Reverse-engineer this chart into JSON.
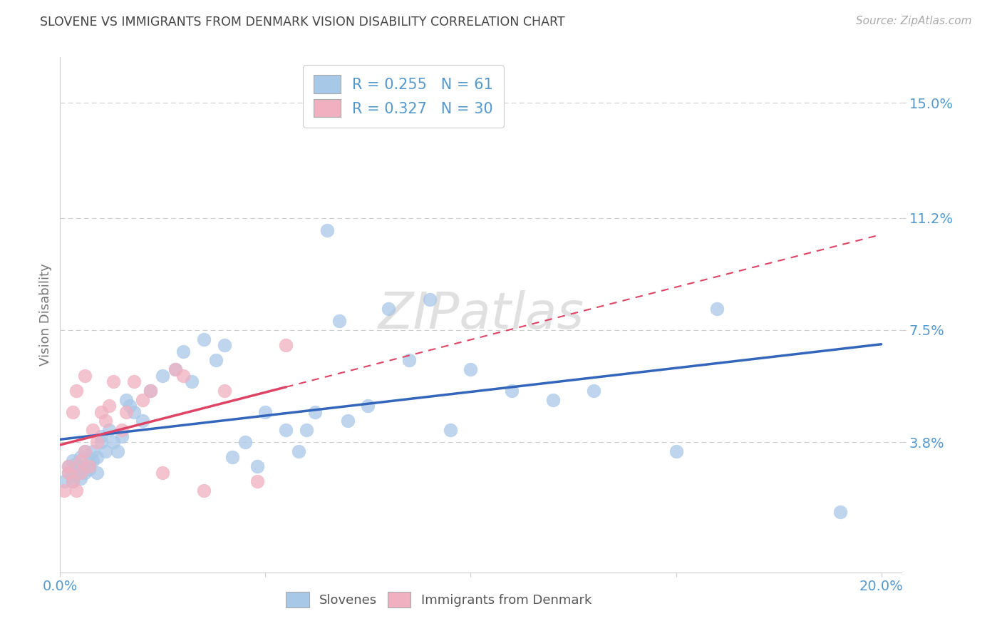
{
  "title": "SLOVENE VS IMMIGRANTS FROM DENMARK VISION DISABILITY CORRELATION CHART",
  "source": "Source: ZipAtlas.com",
  "ylabel": "Vision Disability",
  "xlim": [
    0.0,
    0.205
  ],
  "ylim": [
    -0.005,
    0.165
  ],
  "yticks": [
    0.038,
    0.075,
    0.112,
    0.15
  ],
  "ytick_labels": [
    "3.8%",
    "7.5%",
    "11.2%",
    "15.0%"
  ],
  "xticks": [
    0.0,
    0.05,
    0.1,
    0.15,
    0.2
  ],
  "R_blue": 0.255,
  "N_blue": 61,
  "R_pink": 0.327,
  "N_pink": 30,
  "blue_color": "#a8c8e8",
  "pink_color": "#f0b0c0",
  "blue_line_color": "#3366bb",
  "pink_line_color": "#dd4466",
  "tick_label_color": "#5599cc",
  "grid_color": "#cccccc",
  "background_color": "#ffffff",
  "blue_scatter_x": [
    0.001,
    0.002,
    0.002,
    0.003,
    0.003,
    0.003,
    0.004,
    0.004,
    0.005,
    0.005,
    0.005,
    0.006,
    0.006,
    0.007,
    0.007,
    0.008,
    0.008,
    0.009,
    0.009,
    0.01,
    0.01,
    0.011,
    0.012,
    0.013,
    0.014,
    0.015,
    0.016,
    0.017,
    0.018,
    0.02,
    0.022,
    0.025,
    0.028,
    0.03,
    0.032,
    0.035,
    0.038,
    0.04,
    0.042,
    0.045,
    0.048,
    0.05,
    0.055,
    0.058,
    0.06,
    0.062,
    0.065,
    0.068,
    0.07,
    0.075,
    0.08,
    0.085,
    0.09,
    0.095,
    0.1,
    0.11,
    0.12,
    0.13,
    0.15,
    0.16,
    0.19
  ],
  "blue_scatter_y": [
    0.025,
    0.028,
    0.03,
    0.027,
    0.032,
    0.025,
    0.028,
    0.031,
    0.03,
    0.026,
    0.033,
    0.028,
    0.035,
    0.029,
    0.031,
    0.032,
    0.035,
    0.028,
    0.033,
    0.038,
    0.04,
    0.035,
    0.042,
    0.038,
    0.035,
    0.04,
    0.052,
    0.05,
    0.048,
    0.045,
    0.055,
    0.06,
    0.062,
    0.068,
    0.058,
    0.072,
    0.065,
    0.07,
    0.033,
    0.038,
    0.03,
    0.048,
    0.042,
    0.035,
    0.042,
    0.048,
    0.108,
    0.078,
    0.045,
    0.05,
    0.082,
    0.065,
    0.085,
    0.042,
    0.062,
    0.055,
    0.052,
    0.055,
    0.035,
    0.082,
    0.015
  ],
  "pink_scatter_x": [
    0.001,
    0.002,
    0.002,
    0.003,
    0.003,
    0.004,
    0.004,
    0.005,
    0.005,
    0.006,
    0.006,
    0.007,
    0.008,
    0.009,
    0.01,
    0.011,
    0.012,
    0.013,
    0.015,
    0.016,
    0.018,
    0.02,
    0.022,
    0.025,
    0.028,
    0.03,
    0.035,
    0.04,
    0.048,
    0.055
  ],
  "pink_scatter_y": [
    0.022,
    0.028,
    0.03,
    0.025,
    0.048,
    0.022,
    0.055,
    0.032,
    0.028,
    0.035,
    0.06,
    0.03,
    0.042,
    0.038,
    0.048,
    0.045,
    0.05,
    0.058,
    0.042,
    0.048,
    0.058,
    0.052,
    0.055,
    0.028,
    0.062,
    0.06,
    0.022,
    0.055,
    0.025,
    0.07
  ]
}
